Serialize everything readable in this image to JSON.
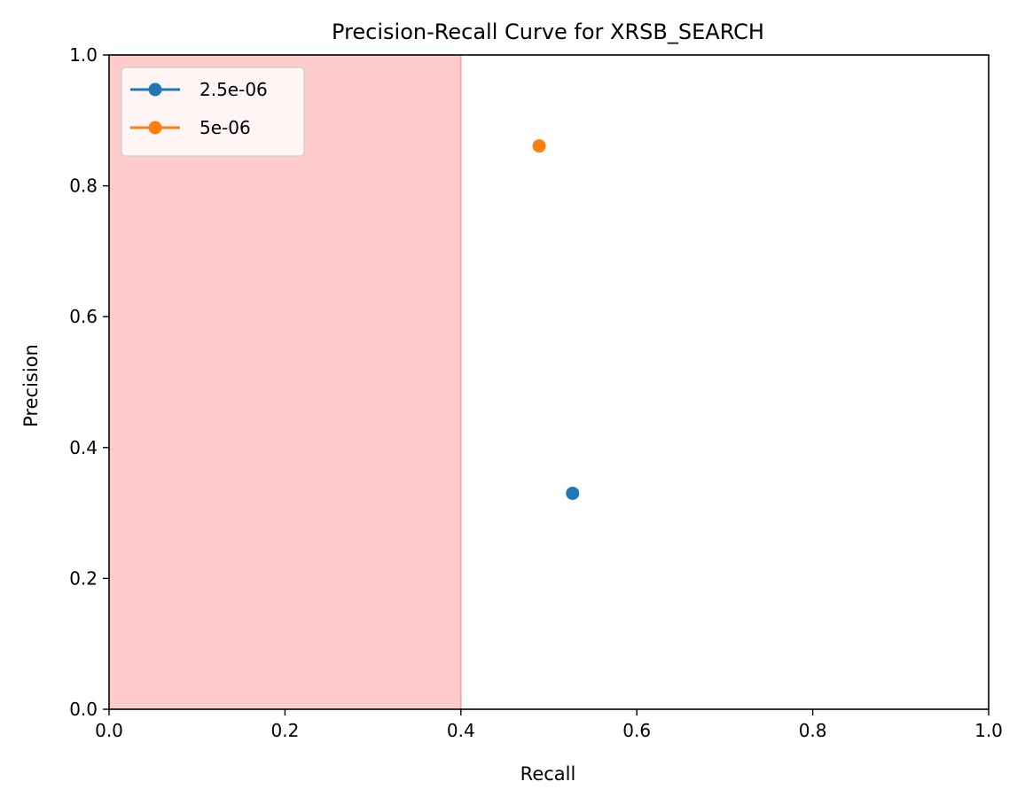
{
  "chart_data": {
    "type": "scatter",
    "title": "Precision-Recall Curve for XRSB_SEARCH",
    "xlabel": "Recall",
    "ylabel": "Precision",
    "xlim": [
      0.0,
      1.0
    ],
    "ylim": [
      0.0,
      1.0
    ],
    "xticks": [
      "0.0",
      "0.2",
      "0.4",
      "0.6",
      "0.8",
      "1.0"
    ],
    "yticks": [
      "0.0",
      "0.2",
      "0.4",
      "0.6",
      "0.8",
      "1.0"
    ],
    "grid": false,
    "legend_position": "top-left",
    "shaded_region": {
      "x_from": 0.0,
      "x_to": 0.4,
      "color": "#fdcbca",
      "edge_color": "#f4a3a1"
    },
    "series": [
      {
        "name": "2.5e-06",
        "color": "#1f77b4",
        "points": [
          {
            "x": 0.527,
            "y": 0.33
          }
        ]
      },
      {
        "name": "5e-06",
        "color": "#ff7f0e",
        "points": [
          {
            "x": 0.489,
            "y": 0.861
          }
        ]
      }
    ]
  }
}
